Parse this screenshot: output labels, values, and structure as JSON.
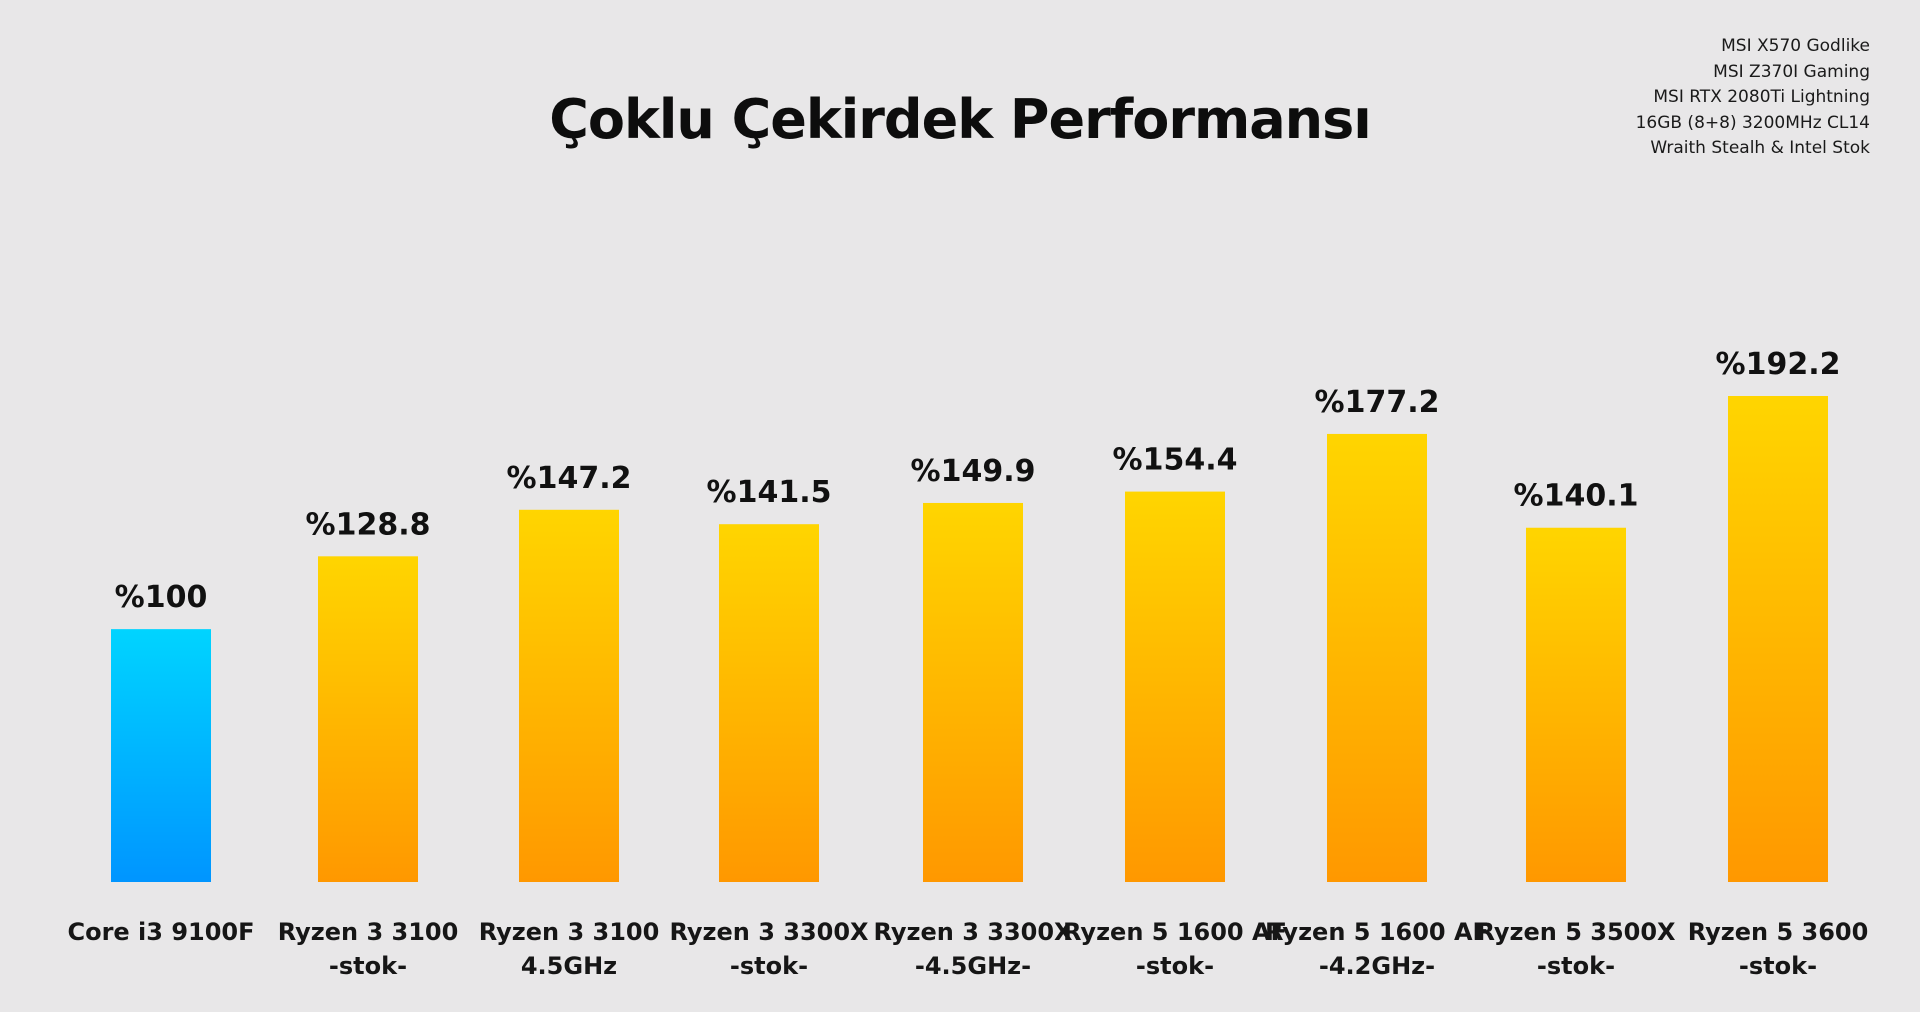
{
  "page": {
    "background": "#e8e7e8"
  },
  "specs": [
    "MSI X570 Godlike",
    "MSI Z370I Gaming",
    "MSI RTX 2080Ti Lightning",
    "16GB (8+8) 3200MHz CL14",
    "Wraith Stealh & Intel Stok"
  ],
  "chart_data": {
    "type": "bar",
    "title": "Çoklu Çekirdek Performansı",
    "xlabel": "",
    "ylabel": "",
    "ylim": [
      0,
      192.2
    ],
    "grid": false,
    "categories": [
      [
        "Core i3 9100F"
      ],
      [
        "Ryzen 3 3100",
        "-stok-"
      ],
      [
        "Ryzen 3 3100",
        "4.5GHz"
      ],
      [
        "Ryzen 3 3300X",
        "-stok-"
      ],
      [
        "Ryzen 3 3300X",
        "-4.5GHz-"
      ],
      [
        "Ryzen 5 1600 AF",
        "-stok-"
      ],
      [
        "Ryzen 5 1600 AF",
        "-4.2GHz-"
      ],
      [
        "Ryzen 5 3500X",
        "-stok-"
      ],
      [
        "Ryzen 5 3600",
        "-stok-"
      ]
    ],
    "values": [
      100,
      128.8,
      147.2,
      141.5,
      149.9,
      154.4,
      177.2,
      140.1,
      192.2
    ],
    "value_labels": [
      "%100",
      "%128.8",
      "%147.2",
      "%141.5",
      "%149.9",
      "%154.4",
      "%177.2",
      "%140.1",
      "%192.2"
    ],
    "colors": {
      "baseline_top": "#00d4ff",
      "baseline_bottom": "#0095ff",
      "bar_top": "#ffd500",
      "bar_bottom": "#ff9800"
    },
    "baseline_index": 0
  }
}
